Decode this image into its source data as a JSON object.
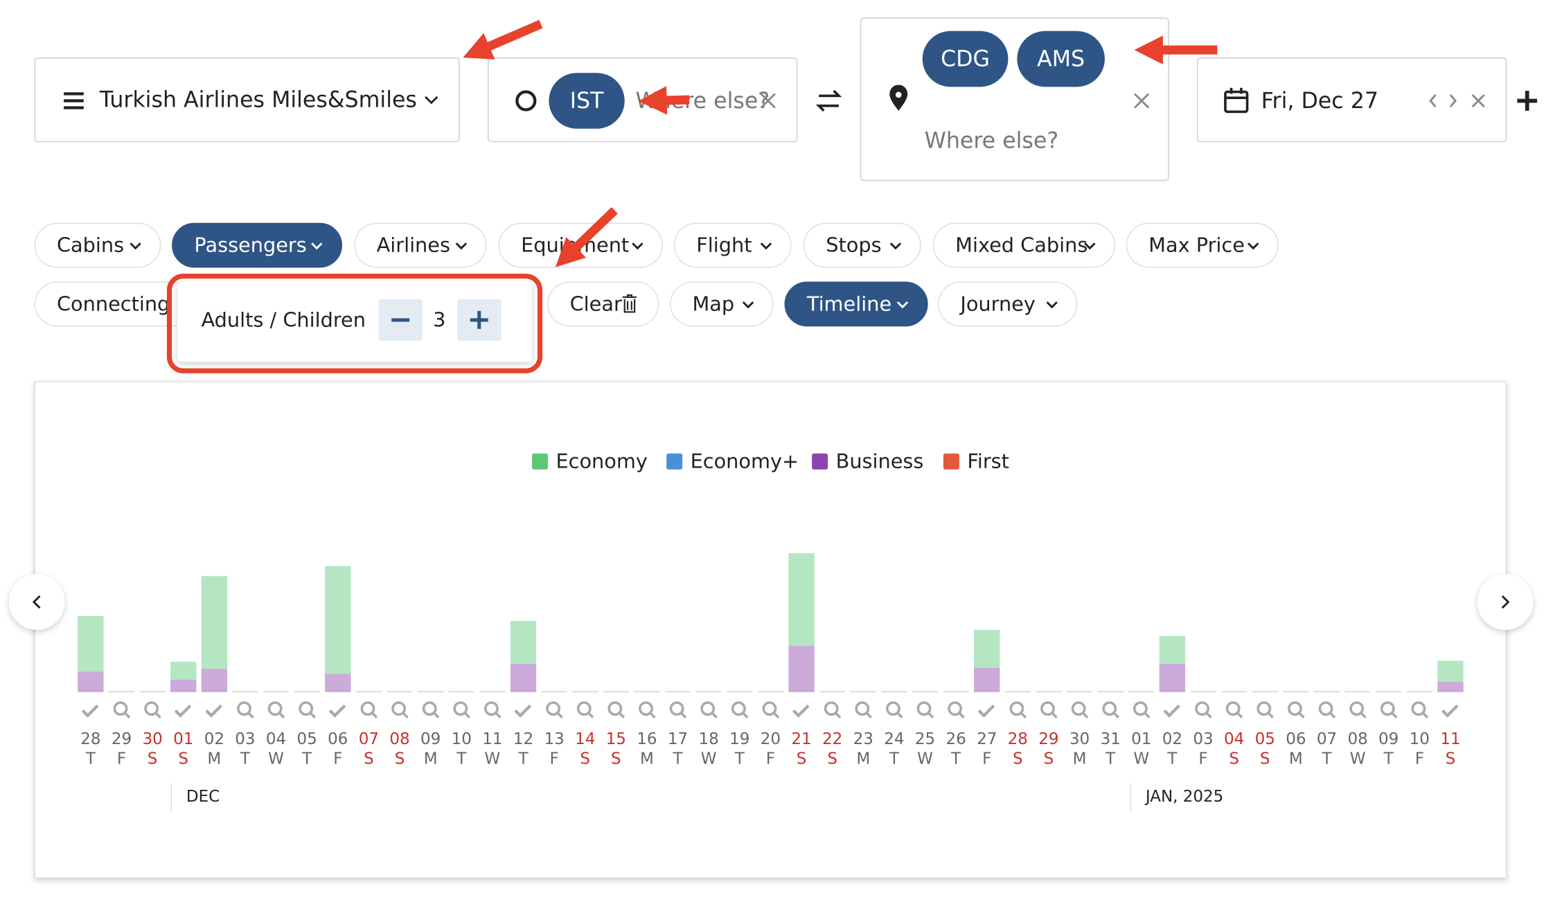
{
  "program": "Turkish Airlines Miles&Smiles",
  "origin": {
    "codes": [
      "IST"
    ],
    "placeholder": "Where else?"
  },
  "destination": {
    "codes": [
      "CDG",
      "AMS"
    ],
    "placeholder": "Where else?"
  },
  "date": "Fri, Dec 27",
  "filters": [
    "Cabins",
    "Passengers",
    "Airlines",
    "Equipment",
    "Flight",
    "Stops",
    "Mixed Cabins",
    "Max Price"
  ],
  "filters_row2": [
    "Connecting",
    "Clear",
    "Map",
    "Timeline",
    "Journey"
  ],
  "passengers": {
    "label": "Adults / Children",
    "count": 3
  },
  "chart_data": {
    "type": "bar",
    "categories": [
      "28",
      "29",
      "30",
      "01",
      "02",
      "03",
      "04",
      "05",
      "06",
      "07",
      "08",
      "09",
      "10",
      "11",
      "12",
      "13",
      "14",
      "15",
      "16",
      "17",
      "18",
      "19",
      "20",
      "21",
      "22",
      "23",
      "24",
      "25",
      "26",
      "27",
      "28",
      "29",
      "30",
      "31",
      "01",
      "02",
      "03",
      "04",
      "05",
      "06",
      "07",
      "08",
      "09",
      "10",
      "11"
    ],
    "weekdays": [
      "T",
      "F",
      "S",
      "S",
      "M",
      "T",
      "W",
      "T",
      "F",
      "S",
      "S",
      "M",
      "T",
      "W",
      "T",
      "F",
      "S",
      "S",
      "M",
      "T",
      "W",
      "T",
      "F",
      "S",
      "S",
      "M",
      "T",
      "W",
      "T",
      "F",
      "S",
      "S",
      "M",
      "T",
      "W",
      "T",
      "F",
      "S",
      "S",
      "M",
      "T",
      "W",
      "T",
      "F",
      "S"
    ],
    "months": [
      "DEC",
      "JAN, 2025"
    ],
    "series": [
      {
        "name": "Economy",
        "color": "#5cc777",
        "values": [
          56,
          0,
          0,
          18,
          93,
          0,
          0,
          0,
          108,
          0,
          0,
          0,
          0,
          0,
          43,
          0,
          0,
          0,
          0,
          0,
          0,
          0,
          0,
          93,
          0,
          0,
          0,
          0,
          0,
          38,
          0,
          0,
          0,
          0,
          0,
          28,
          0,
          0,
          0,
          0,
          0,
          0,
          0,
          0,
          21
        ]
      },
      {
        "name": "Economy+",
        "color": "#4a90d9",
        "values": [
          0,
          0,
          0,
          0,
          0,
          0,
          0,
          0,
          0,
          0,
          0,
          0,
          0,
          0,
          0,
          0,
          0,
          0,
          0,
          0,
          0,
          0,
          0,
          0,
          0,
          0,
          0,
          0,
          0,
          0,
          0,
          0,
          0,
          0,
          0,
          0,
          0,
          0,
          0,
          0,
          0,
          0,
          0,
          0,
          0
        ]
      },
      {
        "name": "Business",
        "color": "#8e44ad",
        "values": [
          20,
          0,
          0,
          12,
          23,
          0,
          0,
          0,
          18,
          0,
          0,
          0,
          0,
          0,
          28,
          0,
          0,
          0,
          0,
          0,
          0,
          0,
          0,
          46,
          0,
          0,
          0,
          0,
          0,
          24,
          0,
          0,
          0,
          0,
          0,
          28,
          0,
          0,
          0,
          0,
          0,
          0,
          0,
          0,
          10
        ]
      },
      {
        "name": "First",
        "color": "#e05a3f",
        "values": [
          0,
          0,
          0,
          0,
          0,
          0,
          0,
          0,
          0,
          0,
          0,
          0,
          0,
          0,
          0,
          0,
          0,
          0,
          0,
          0,
          0,
          0,
          0,
          0,
          0,
          0,
          0,
          0,
          0,
          0,
          0,
          0,
          0,
          0,
          0,
          0,
          0,
          0,
          0,
          0,
          0,
          0,
          0,
          0,
          0
        ]
      }
    ]
  }
}
